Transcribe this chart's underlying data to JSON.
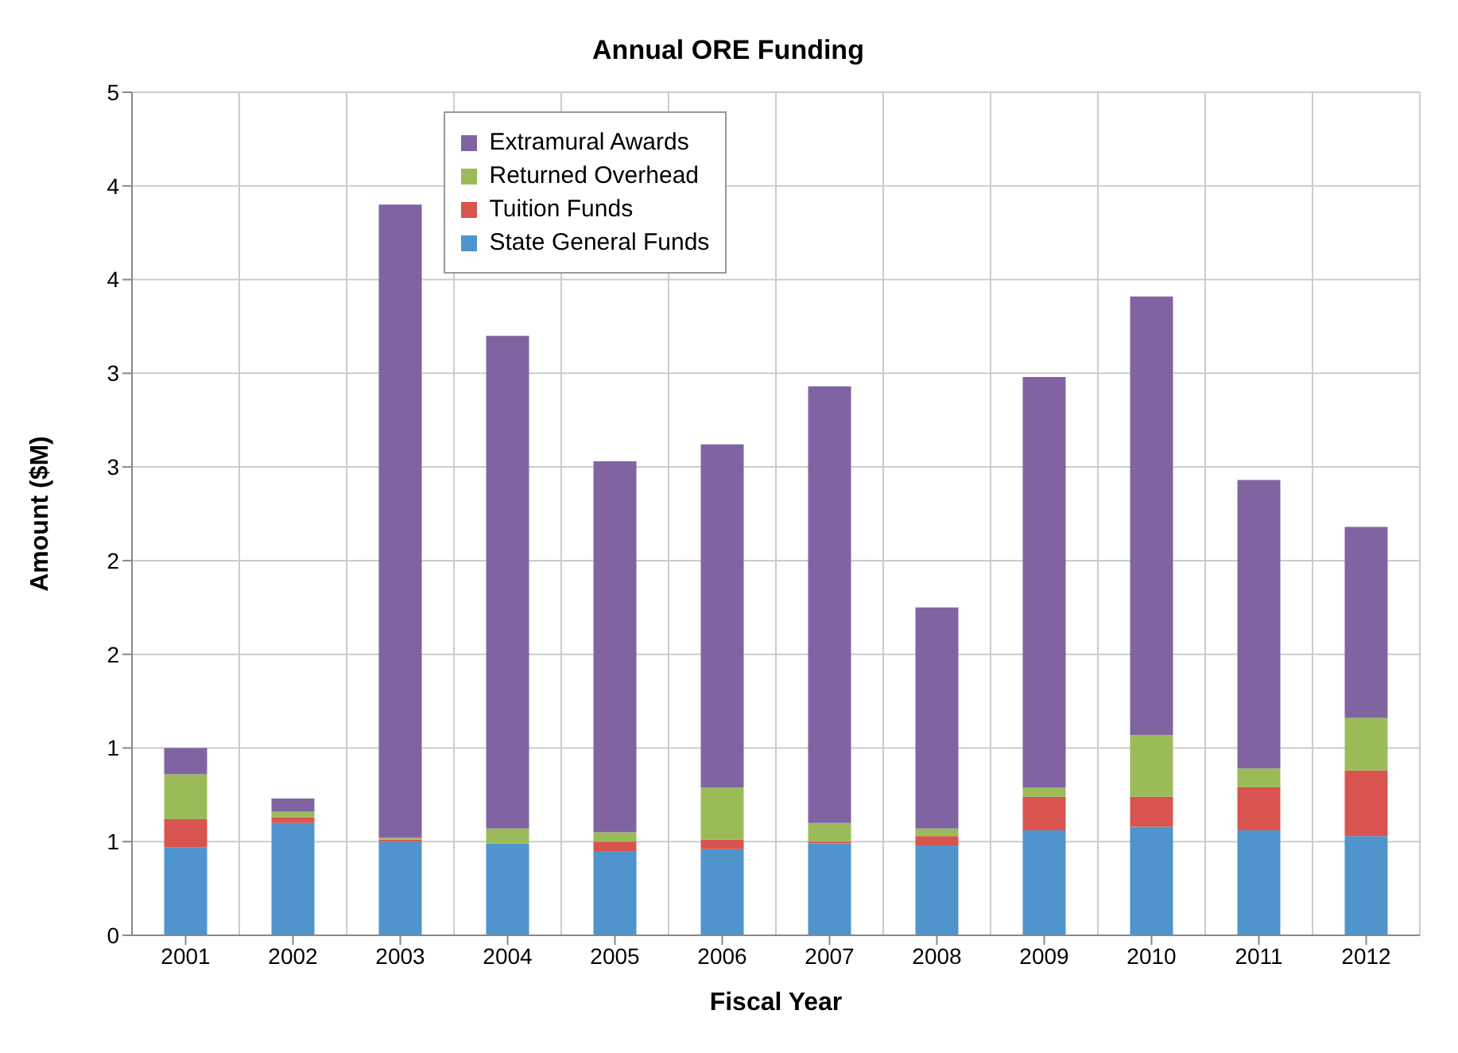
{
  "chart_data": {
    "type": "bar",
    "title": "Annual ORE Funding",
    "xlabel": "Fiscal Year",
    "ylabel": "Amount ($M)",
    "categories": [
      "2001",
      "2002",
      "2003",
      "2004",
      "2005",
      "2006",
      "2007",
      "2008",
      "2009",
      "2010",
      "2011",
      "2012"
    ],
    "stacked": true,
    "series": [
      {
        "name": "State General Funds",
        "color": "#4f94cd",
        "values": [
          0.47,
          0.6,
          0.5,
          0.49,
          0.45,
          0.46,
          0.49,
          0.48,
          0.56,
          0.58,
          0.56,
          0.53
        ]
      },
      {
        "name": "Tuition Funds",
        "color": "#d9534f",
        "values": [
          0.15,
          0.03,
          0.01,
          0,
          0.05,
          0.05,
          0.01,
          0.05,
          0.18,
          0.16,
          0.23,
          0.35
        ]
      },
      {
        "name": "Returned Overhead",
        "color": "#9bbb59",
        "values": [
          0.24,
          0.03,
          0.01,
          0.08,
          0.05,
          0.28,
          0.1,
          0.04,
          0.05,
          0.33,
          0.1,
          0.28
        ]
      },
      {
        "name": "Extramural Awards",
        "color": "#8064a2",
        "values": [
          0.14,
          0.07,
          3.38,
          2.63,
          1.98,
          1.83,
          2.33,
          1.18,
          2.19,
          2.34,
          1.54,
          1.02
        ]
      }
    ],
    "ylim": [
      0,
      4.5
    ],
    "yticks": [
      0,
      {
        "value": 0.5,
        "label": "1"
      },
      {
        "value": 1,
        "label": "1"
      },
      {
        "value": 1.5,
        "label": "2"
      },
      {
        "value": 2,
        "label": "2"
      },
      {
        "value": 2.5,
        "label": "3"
      },
      {
        "value": 3,
        "label": "3"
      },
      {
        "value": 3.5,
        "label": "4"
      },
      {
        "value": 4,
        "label": "4"
      },
      {
        "value": 4.5,
        "label": "5"
      }
    ],
    "grid": true,
    "legend": "top left"
  }
}
